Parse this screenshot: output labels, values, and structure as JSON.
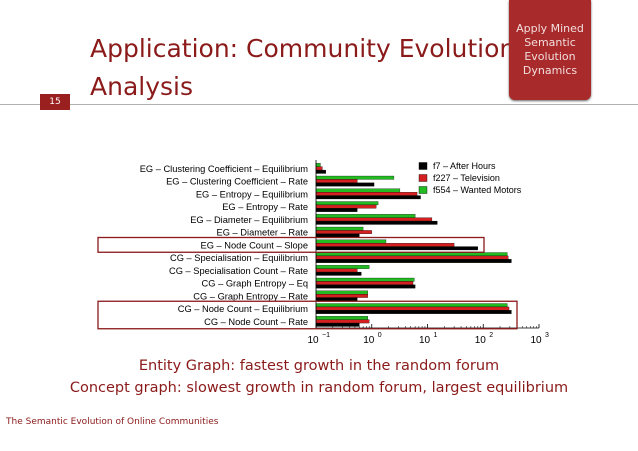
{
  "slide": {
    "title_line1": "Application: Community Evolution",
    "title_line2": "Analysis",
    "page_number": "15",
    "badge": "Apply Mined Semantic Evolution Dynamics",
    "caption_line1": "Entity Graph: fastest growth in the random forum",
    "caption_line2": "Concept graph: slowest growth in random forum, largest equilibrium",
    "footer": "The Semantic Evolution of Online Communities",
    "accent_color": "#8b1a1a"
  },
  "chart_data": {
    "type": "bar",
    "orientation": "horizontal",
    "x_scale": "log",
    "xlim": [
      0.1,
      1000
    ],
    "x_ticks": [
      {
        "base": "10",
        "exp": "−1"
      },
      {
        "base": "10",
        "exp": "0"
      },
      {
        "base": "10",
        "exp": "1"
      },
      {
        "base": "10",
        "exp": "2"
      },
      {
        "base": "10",
        "exp": "3"
      }
    ],
    "legend_position": "top-right",
    "categories": [
      "EG – Clustering Coefficient – Equilibrium",
      "EG – Clustering Coefficient – Rate",
      "EG – Entropy – Equilibrium",
      "EG – Entropy – Rate",
      "EG – Diameter – Equilibrium",
      "EG – Diameter – Rate",
      "EG – Node Count – Slope",
      "CG – Specialisation – Equilibrium",
      "CG – Specialisation Count – Rate",
      "CG – Graph Entropy – Eq",
      "CG – Graph Entropy – Rate",
      "CG – Node Count – Equilibrium",
      "CG – Node Count – Rate"
    ],
    "highlighted_categories": [
      "EG – Node Count – Slope",
      "CG – Node Count – Equilibrium",
      "CG – Node Count – Rate"
    ],
    "series": [
      {
        "name": "f7 – After Hours",
        "color": "#000000",
        "values": [
          0.15,
          1.1,
          7.5,
          0.55,
          15,
          0.6,
          80,
          320,
          0.65,
          6,
          0.55,
          320,
          0.6
        ]
      },
      {
        "name": "f227 – Television",
        "color": "#d42020",
        "values": [
          0.13,
          0.55,
          6.5,
          1.2,
          12,
          1.0,
          30,
          280,
          0.55,
          5.5,
          0.85,
          290,
          0.9
        ]
      },
      {
        "name": "f554 – Wanted Motors",
        "color": "#22bb22",
        "values": [
          0.12,
          2.5,
          3.2,
          1.3,
          6,
          0.7,
          1.8,
          270,
          0.9,
          5.8,
          0.85,
          270,
          0.85
        ]
      }
    ]
  }
}
